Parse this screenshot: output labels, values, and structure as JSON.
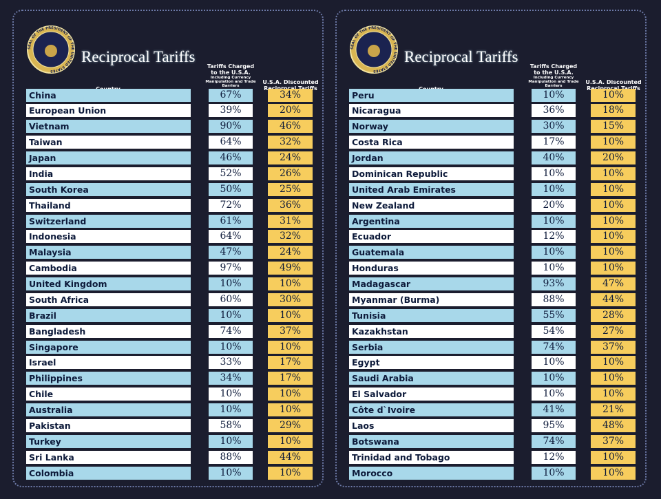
{
  "panels": [
    {
      "title": "Reciprocal Tariffs",
      "seal_text": "SEAL OF THE PRESIDENT OF THE UNITED STATES",
      "headers": {
        "country": "Country",
        "charged": "Tariffs Charged to the U.S.A.",
        "charged_note": "Including Currency Manipulation and Trade Barriers",
        "discounted": "U.S.A. Discounted Reciprocal Tariffs"
      },
      "rows": [
        [
          "China",
          "67%",
          "34%"
        ],
        [
          "European Union",
          "39%",
          "20%"
        ],
        [
          "Vietnam",
          "90%",
          "46%"
        ],
        [
          "Taiwan",
          "64%",
          "32%"
        ],
        [
          "Japan",
          "46%",
          "24%"
        ],
        [
          "India",
          "52%",
          "26%"
        ],
        [
          "South Korea",
          "50%",
          "25%"
        ],
        [
          "Thailand",
          "72%",
          "36%"
        ],
        [
          "Switzerland",
          "61%",
          "31%"
        ],
        [
          "Indonesia",
          "64%",
          "32%"
        ],
        [
          "Malaysia",
          "47%",
          "24%"
        ],
        [
          "Cambodia",
          "97%",
          "49%"
        ],
        [
          "United Kingdom",
          "10%",
          "10%"
        ],
        [
          "South Africa",
          "60%",
          "30%"
        ],
        [
          "Brazil",
          "10%",
          "10%"
        ],
        [
          "Bangladesh",
          "74%",
          "37%"
        ],
        [
          "Singapore",
          "10%",
          "10%"
        ],
        [
          "Israel",
          "33%",
          "17%"
        ],
        [
          "Philippines",
          "34%",
          "17%"
        ],
        [
          "Chile",
          "10%",
          "10%"
        ],
        [
          "Australia",
          "10%",
          "10%"
        ],
        [
          "Pakistan",
          "58%",
          "29%"
        ],
        [
          "Turkey",
          "10%",
          "10%"
        ],
        [
          "Sri Lanka",
          "88%",
          "44%"
        ],
        [
          "Colombia",
          "10%",
          "10%"
        ]
      ]
    },
    {
      "title": "Reciprocal Tariffs",
      "seal_text": "SEAL OF THE PRESIDENT OF THE UNITED STATES",
      "headers": {
        "country": "Country",
        "charged": "Tariffs Charged to the U.S.A.",
        "charged_note": "Including Currency Manipulation and Trade Barriers",
        "discounted": "U.S.A. Discounted Reciprocal Tariffs"
      },
      "rows": [
        [
          "Peru",
          "10%",
          "10%"
        ],
        [
          "Nicaragua",
          "36%",
          "18%"
        ],
        [
          "Norway",
          "30%",
          "15%"
        ],
        [
          "Costa Rica",
          "17%",
          "10%"
        ],
        [
          "Jordan",
          "40%",
          "20%"
        ],
        [
          "Dominican Republic",
          "10%",
          "10%"
        ],
        [
          "United Arab Emirates",
          "10%",
          "10%"
        ],
        [
          "New Zealand",
          "20%",
          "10%"
        ],
        [
          "Argentina",
          "10%",
          "10%"
        ],
        [
          "Ecuador",
          "12%",
          "10%"
        ],
        [
          "Guatemala",
          "10%",
          "10%"
        ],
        [
          "Honduras",
          "10%",
          "10%"
        ],
        [
          "Madagascar",
          "93%",
          "47%"
        ],
        [
          "Myanmar (Burma)",
          "88%",
          "44%"
        ],
        [
          "Tunisia",
          "55%",
          "28%"
        ],
        [
          "Kazakhstan",
          "54%",
          "27%"
        ],
        [
          "Serbia",
          "74%",
          "37%"
        ],
        [
          "Egypt",
          "10%",
          "10%"
        ],
        [
          "Saudi Arabia",
          "10%",
          "10%"
        ],
        [
          "El Salvador",
          "10%",
          "10%"
        ],
        [
          "Côte d`Ivoire",
          "41%",
          "21%"
        ],
        [
          "Laos",
          "95%",
          "48%"
        ],
        [
          "Botswana",
          "74%",
          "37%"
        ],
        [
          "Trinidad and Tobago",
          "12%",
          "10%"
        ],
        [
          "Morocco",
          "10%",
          "10%"
        ]
      ]
    }
  ]
}
